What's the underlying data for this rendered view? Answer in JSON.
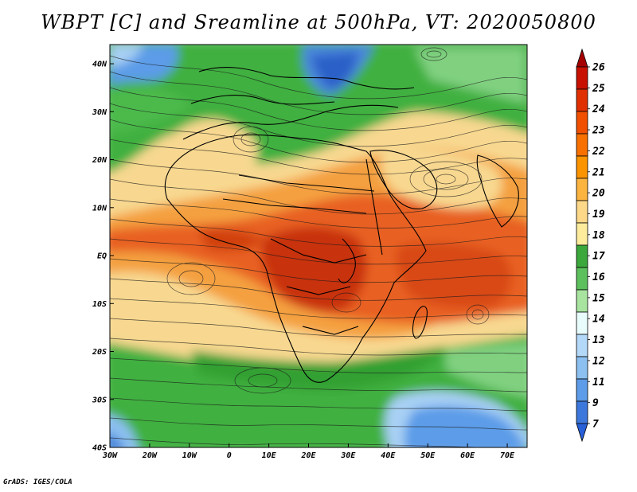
{
  "title": "WBPT [C] and Sreamline at 500hPa, VT: 2020050800",
  "credit": "GrADS: IGES/COLA",
  "map": {
    "lat_labels": [
      "40N",
      "30N",
      "20N",
      "10N",
      "EQ",
      "10S",
      "20S",
      "30S",
      "40S"
    ],
    "lon_labels": [
      "30W",
      "20W",
      "10W",
      "0",
      "10E",
      "20E",
      "30E",
      "40E",
      "50E",
      "60E",
      "70E"
    ],
    "lat_range": [
      -40,
      44
    ],
    "lon_range": [
      -30,
      75
    ]
  },
  "colorbar": {
    "labels": [
      "26",
      "25",
      "24",
      "23",
      "22",
      "21",
      "20",
      "19",
      "18",
      "17",
      "16",
      "15",
      "14",
      "13",
      "12",
      "11",
      "9",
      "7"
    ],
    "colors": [
      "#a50000",
      "#c81000",
      "#e03000",
      "#f05000",
      "#f87000",
      "#fc9400",
      "#fcb440",
      "#fcd888",
      "#fcec9c",
      "#3ca83c",
      "#5cc05c",
      "#a8e4a0",
      "#e8fcfc",
      "#b4d8f8",
      "#8cc0f0",
      "#5c9ce8",
      "#3c78dc",
      "#2860d8"
    ]
  },
  "palette": {
    "red_dark": "#c82800",
    "orange": "#e86020",
    "light_orange": "#f4a040",
    "tan": "#f8d890",
    "green": "#40b040",
    "light_green": "#80d080",
    "light_blue": "#a8d0f4",
    "blue": "#4c90dc"
  }
}
